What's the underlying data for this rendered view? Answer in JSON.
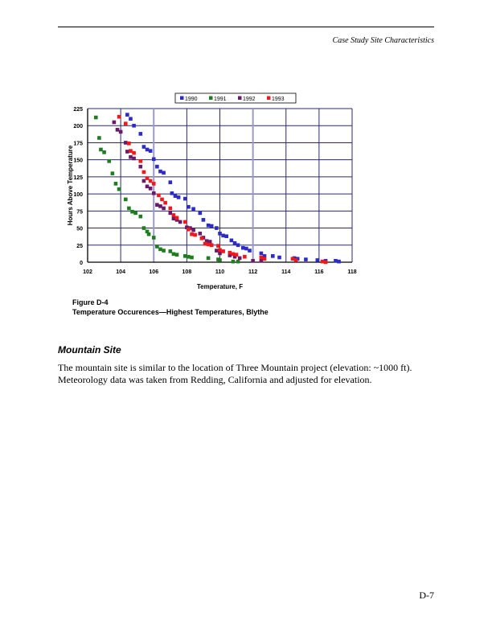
{
  "header": {
    "running_title": "Case Study Site Characteristics"
  },
  "figure": {
    "number": "Figure D-4",
    "title": "Temperature Occurences—Highest Temperatures, Blythe"
  },
  "section": {
    "heading": "Mountain Site",
    "paragraph": "The mountain site is similar to the location of Three Mountain project (elevation: ~1000 ft). Meteorology data was taken from Redding, California and adjusted for elevation."
  },
  "footer": {
    "page": "D-7"
  },
  "chart_data": {
    "type": "scatter",
    "title": "",
    "xlabel": "Temperature, F",
    "ylabel": "Hours Above Temperature",
    "xlim": [
      102,
      118
    ],
    "ylim": [
      0,
      225
    ],
    "xticks": [
      "102",
      "104",
      "106",
      "108",
      "110",
      "112",
      "114",
      "116",
      "118"
    ],
    "yticks": [
      "0",
      "25",
      "50",
      "75",
      "100",
      "125",
      "150",
      "175",
      "200",
      "225"
    ],
    "grid": true,
    "legend_position": "top",
    "series": [
      {
        "name": "1990",
        "color": "#2b2bc8",
        "points": [
          [
            104.4,
            216
          ],
          [
            104.6,
            210
          ],
          [
            104.8,
            200
          ],
          [
            105.2,
            188
          ],
          [
            105.4,
            169
          ],
          [
            105.6,
            165
          ],
          [
            105.8,
            163
          ],
          [
            106,
            151
          ],
          [
            106.2,
            140
          ],
          [
            106.4,
            133
          ],
          [
            106.6,
            131
          ],
          [
            107,
            117
          ],
          [
            107.1,
            101
          ],
          [
            107.3,
            97
          ],
          [
            107.5,
            95
          ],
          [
            107.9,
            93
          ],
          [
            108.1,
            81
          ],
          [
            108.4,
            78
          ],
          [
            108.8,
            72
          ],
          [
            109,
            62
          ],
          [
            109.3,
            54
          ],
          [
            109.5,
            53
          ],
          [
            109.8,
            50
          ],
          [
            110,
            42
          ],
          [
            110.2,
            39
          ],
          [
            110.4,
            38
          ],
          [
            110.7,
            32
          ],
          [
            110.9,
            28
          ],
          [
            111.1,
            25
          ],
          [
            111.4,
            21
          ],
          [
            111.6,
            20
          ],
          [
            111.8,
            17
          ],
          [
            112.5,
            13
          ],
          [
            112.7,
            9
          ],
          [
            113.2,
            9
          ],
          [
            113.6,
            7
          ],
          [
            114.5,
            6
          ],
          [
            114.7,
            5
          ],
          [
            115.2,
            4
          ],
          [
            115.9,
            3
          ],
          [
            116.4,
            2
          ],
          [
            117,
            2
          ],
          [
            117.2,
            1
          ]
        ]
      },
      {
        "name": "1991",
        "color": "#1e7d1e",
        "points": [
          [
            102.5,
            212
          ],
          [
            102.7,
            182
          ],
          [
            102.8,
            165
          ],
          [
            103,
            161
          ],
          [
            103.3,
            148
          ],
          [
            103.5,
            130
          ],
          [
            103.7,
            115
          ],
          [
            103.9,
            107
          ],
          [
            104.3,
            92
          ],
          [
            104.5,
            79
          ],
          [
            104.7,
            74
          ],
          [
            104.9,
            72
          ],
          [
            105.2,
            67
          ],
          [
            105.4,
            50
          ],
          [
            105.6,
            45
          ],
          [
            105.7,
            41
          ],
          [
            106,
            36
          ],
          [
            106.2,
            23
          ],
          [
            106.4,
            19
          ],
          [
            106.6,
            17
          ],
          [
            107,
            16
          ],
          [
            107.2,
            12
          ],
          [
            107.4,
            11
          ],
          [
            107.9,
            9
          ],
          [
            108.1,
            8
          ],
          [
            108.3,
            7
          ],
          [
            109.3,
            6
          ],
          [
            109.9,
            4
          ],
          [
            110,
            3
          ],
          [
            110.8,
            1
          ],
          [
            111.1,
            1
          ]
        ]
      },
      {
        "name": "1992",
        "color": "#6a1a6a",
        "points": [
          [
            103.6,
            205
          ],
          [
            103.8,
            194
          ],
          [
            104,
            191
          ],
          [
            104.3,
            175
          ],
          [
            104.4,
            162
          ],
          [
            104.6,
            154
          ],
          [
            104.8,
            152
          ],
          [
            105.2,
            140
          ],
          [
            105.4,
            119
          ],
          [
            105.6,
            111
          ],
          [
            105.8,
            108
          ],
          [
            106,
            101
          ],
          [
            106.2,
            84
          ],
          [
            106.4,
            82
          ],
          [
            106.6,
            79
          ],
          [
            107,
            72
          ],
          [
            107.2,
            64
          ],
          [
            107.4,
            62
          ],
          [
            107.6,
            59
          ],
          [
            108,
            51
          ],
          [
            108.2,
            50
          ],
          [
            108.4,
            47
          ],
          [
            108.8,
            42
          ],
          [
            109,
            36
          ],
          [
            109.2,
            31
          ],
          [
            109.4,
            30
          ],
          [
            109.8,
            17
          ],
          [
            110,
            13
          ],
          [
            110.6,
            10
          ],
          [
            110.9,
            8
          ],
          [
            111.2,
            6
          ],
          [
            112,
            2
          ],
          [
            112.5,
            2
          ]
        ]
      },
      {
        "name": "1993",
        "color": "#f01818",
        "points": [
          [
            103.9,
            213
          ],
          [
            104.3,
            203
          ],
          [
            104.5,
            174
          ],
          [
            104.6,
            163
          ],
          [
            104.8,
            160
          ],
          [
            105.2,
            148
          ],
          [
            105.4,
            132
          ],
          [
            105.6,
            123
          ],
          [
            105.8,
            119
          ],
          [
            106,
            115
          ],
          [
            106.3,
            98
          ],
          [
            106.5,
            92
          ],
          [
            106.7,
            87
          ],
          [
            107,
            79
          ],
          [
            107.2,
            69
          ],
          [
            107.4,
            65
          ],
          [
            107.9,
            59
          ],
          [
            108.1,
            48
          ],
          [
            108.3,
            41
          ],
          [
            108.5,
            40
          ],
          [
            108.9,
            35
          ],
          [
            109.1,
            27
          ],
          [
            109.3,
            26
          ],
          [
            109.5,
            25
          ],
          [
            109.9,
            24
          ],
          [
            110,
            18
          ],
          [
            110.2,
            16
          ],
          [
            110.6,
            14
          ],
          [
            110.8,
            12
          ],
          [
            111,
            11
          ],
          [
            111.5,
            8
          ],
          [
            112.5,
            7
          ],
          [
            112.7,
            5
          ],
          [
            114.4,
            5
          ],
          [
            114.6,
            3
          ],
          [
            116.2,
            1
          ],
          [
            116.4,
            0
          ]
        ]
      }
    ]
  }
}
